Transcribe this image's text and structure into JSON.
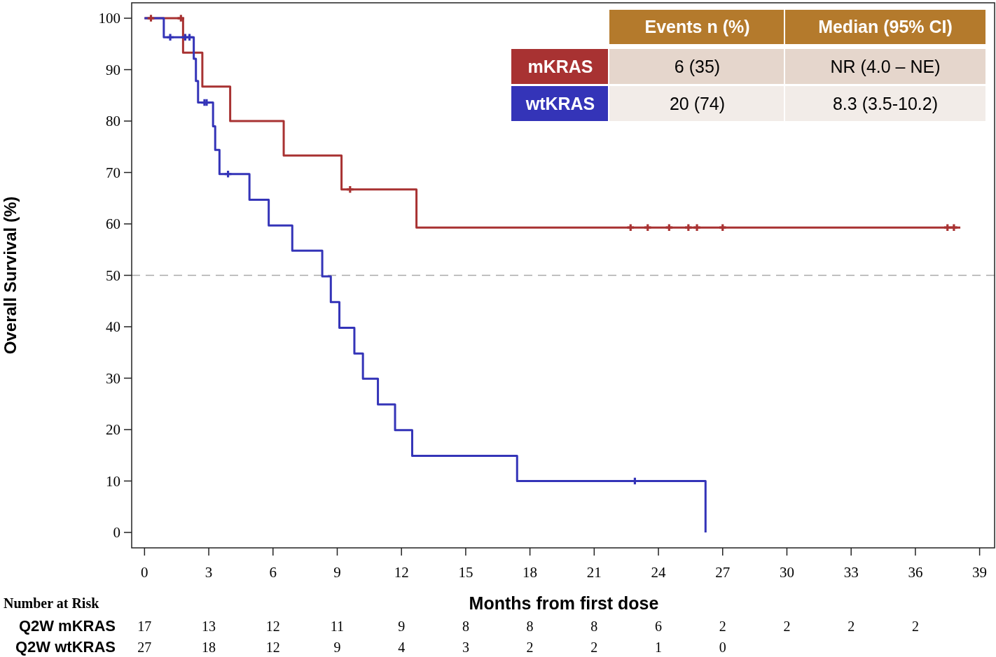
{
  "chart_data": {
    "type": "step",
    "xlabel": "Months from first dose",
    "ylabel": "Overall Survival (%)",
    "xlim": [
      -0.6,
      39.7
    ],
    "ylim": [
      -3,
      103
    ],
    "xticks": [
      0,
      3,
      6,
      9,
      12,
      15,
      18,
      21,
      24,
      27,
      30,
      33,
      36,
      39
    ],
    "yticks": [
      0,
      10,
      20,
      30,
      40,
      50,
      60,
      70,
      80,
      90,
      100
    ],
    "grid": false,
    "legend": "top right",
    "ref_lines": [
      {
        "axis": "y",
        "value": 50,
        "color": "#aaaaaa",
        "line_style": "dashed"
      }
    ],
    "series": [
      {
        "name": "mKRAS",
        "color": "#a83232",
        "x": [
          0,
          1.8,
          2.7,
          4.0,
          6.5,
          9.2,
          12.7,
          38.1
        ],
        "values": [
          100,
          93.3,
          86.7,
          80,
          73.3,
          66.7,
          59.3,
          59.3
        ]
      },
      {
        "name": "wtKRAS",
        "color": "#3434b8",
        "x": [
          0,
          0.9,
          2.3,
          2.4,
          2.5,
          3.2,
          3.3,
          3.5,
          4.9,
          5.8,
          6.9,
          8.3,
          8.7,
          9.1,
          9.8,
          10.2,
          10.9,
          11.7,
          12.5,
          17.4,
          26.2
        ],
        "values": [
          100,
          96.3,
          92.1,
          87.8,
          83.6,
          79,
          74.4,
          69.7,
          64.7,
          59.7,
          54.8,
          49.8,
          44.8,
          39.8,
          34.8,
          29.9,
          24.9,
          19.9,
          14.9,
          10,
          0
        ]
      },
      {
        "type": "scatter",
        "marker": "cross",
        "color": "#a83232",
        "x": [
          0.3,
          1.7,
          9.6,
          22.7,
          23.5,
          24.5,
          25.4,
          25.8,
          27.0,
          37.5,
          37.8
        ],
        "values": [
          100,
          100,
          66.7,
          59.3,
          59.3,
          59.3,
          59.3,
          59.3,
          59.3,
          59.3,
          59.3
        ]
      },
      {
        "type": "scatter",
        "marker": "cross",
        "color": "#3434b8",
        "x": [
          1.2,
          1.9,
          2.1,
          2.8,
          2.9,
          3.9,
          22.9
        ],
        "values": [
          96.3,
          96.3,
          96.3,
          83.6,
          83.6,
          69.7,
          10
        ]
      }
    ],
    "annotations": [
      "Events n (%)",
      "Median (95% CI)",
      "6 (35)",
      "NR (4.0 – NE)",
      "20 (74)",
      "8.3 (3.5-10.2)",
      "Number at Risk",
      "Q2W mKRAS",
      "17",
      "13",
      "12",
      "11",
      "9",
      "8",
      "8",
      "8",
      "6",
      "2",
      "2",
      "2",
      "2",
      "Q2W wtKRAS",
      "27",
      "18",
      "12",
      "9",
      "4",
      "3",
      "2",
      "2",
      "1",
      "0"
    ]
  }
}
